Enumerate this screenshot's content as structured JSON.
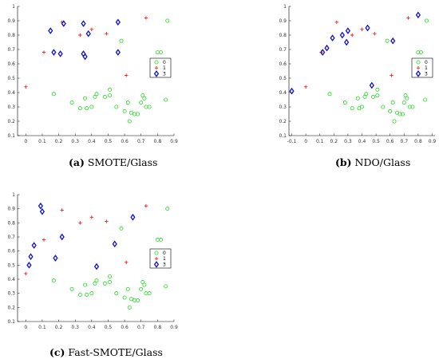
{
  "legend_labels": [
    "0",
    "1",
    "3"
  ],
  "colors": {
    "0": "#22dd22",
    "1": "#ee2020",
    "3": "#1010cc"
  },
  "chart_data": [
    {
      "type": "scatter",
      "caption_tag": "(a)",
      "caption_text": " SMOTE/Glass",
      "xlim": [
        -0.05,
        0.9
      ],
      "ylim": [
        0.1,
        1.0
      ],
      "xticks": [
        "0",
        "0.1",
        "0.2",
        "0.3",
        "0.4",
        "0.5",
        "0.6",
        "0.7",
        "0.8",
        "0.9"
      ],
      "yticks": [
        "0.1",
        "0.2",
        "0.3",
        "0.4",
        "0.5",
        "0.6",
        "0.7",
        "0.8",
        "0.9",
        "1"
      ],
      "legend_position": "center-right",
      "series": [
        {
          "name": "0",
          "marker": "circle",
          "points": [
            [
              0.17,
              0.39
            ],
            [
              0.28,
              0.33
            ],
            [
              0.33,
              0.29
            ],
            [
              0.36,
              0.36
            ],
            [
              0.37,
              0.29
            ],
            [
              0.4,
              0.3
            ],
            [
              0.42,
              0.37
            ],
            [
              0.43,
              0.39
            ],
            [
              0.48,
              0.37
            ],
            [
              0.51,
              0.42
            ],
            [
              0.51,
              0.38
            ],
            [
              0.55,
              0.3
            ],
            [
              0.58,
              0.76
            ],
            [
              0.6,
              0.27
            ],
            [
              0.62,
              0.33
            ],
            [
              0.63,
              0.2
            ],
            [
              0.64,
              0.26
            ],
            [
              0.66,
              0.25
            ],
            [
              0.68,
              0.25
            ],
            [
              0.7,
              0.33
            ],
            [
              0.71,
              0.38
            ],
            [
              0.72,
              0.36
            ],
            [
              0.73,
              0.3
            ],
            [
              0.75,
              0.3
            ],
            [
              0.8,
              0.68
            ],
            [
              0.82,
              0.68
            ],
            [
              0.85,
              0.35
            ],
            [
              0.86,
              0.9
            ]
          ]
        },
        {
          "name": "1",
          "marker": "plus",
          "points": [
            [
              0.0,
              0.44
            ],
            [
              0.11,
              0.68
            ],
            [
              0.22,
              0.89
            ],
            [
              0.33,
              0.8
            ],
            [
              0.4,
              0.84
            ],
            [
              0.49,
              0.81
            ],
            [
              0.61,
              0.52
            ],
            [
              0.73,
              0.92
            ]
          ]
        },
        {
          "name": "3",
          "marker": "diamond",
          "points": [
            [
              0.15,
              0.83
            ],
            [
              0.17,
              0.68
            ],
            [
              0.21,
              0.67
            ],
            [
              0.23,
              0.88
            ],
            [
              0.35,
              0.88
            ],
            [
              0.35,
              0.67
            ],
            [
              0.36,
              0.65
            ],
            [
              0.38,
              0.81
            ],
            [
              0.56,
              0.89
            ],
            [
              0.56,
              0.68
            ]
          ]
        }
      ]
    },
    {
      "type": "scatter",
      "caption_tag": "(b)",
      "caption_text": " NDO/Glass",
      "xlim": [
        -0.12,
        0.92
      ],
      "ylim": [
        0.1,
        1.0
      ],
      "xticks": [
        "-0.1",
        "0",
        "0.1",
        "0.2",
        "0.3",
        "0.4",
        "0.5",
        "0.6",
        "0.7",
        "0.8",
        "0.9"
      ],
      "yticks": [
        "0.1",
        "0.2",
        "0.3",
        "0.4",
        "0.5",
        "0.6",
        "0.7",
        "0.8",
        "0.9",
        "1"
      ],
      "legend_position": "center-right",
      "series": [
        {
          "name": "0",
          "marker": "circle",
          "points": [
            [
              0.17,
              0.39
            ],
            [
              0.28,
              0.33
            ],
            [
              0.33,
              0.29
            ],
            [
              0.37,
              0.36
            ],
            [
              0.38,
              0.29
            ],
            [
              0.4,
              0.3
            ],
            [
              0.42,
              0.37
            ],
            [
              0.43,
              0.39
            ],
            [
              0.48,
              0.37
            ],
            [
              0.51,
              0.42
            ],
            [
              0.51,
              0.38
            ],
            [
              0.55,
              0.3
            ],
            [
              0.58,
              0.76
            ],
            [
              0.6,
              0.27
            ],
            [
              0.62,
              0.33
            ],
            [
              0.63,
              0.2
            ],
            [
              0.65,
              0.26
            ],
            [
              0.67,
              0.25
            ],
            [
              0.69,
              0.25
            ],
            [
              0.7,
              0.33
            ],
            [
              0.71,
              0.38
            ],
            [
              0.72,
              0.36
            ],
            [
              0.74,
              0.3
            ],
            [
              0.76,
              0.3
            ],
            [
              0.8,
              0.68
            ],
            [
              0.82,
              0.68
            ],
            [
              0.85,
              0.35
            ],
            [
              0.86,
              0.9
            ]
          ]
        },
        {
          "name": "1",
          "marker": "plus",
          "points": [
            [
              0.0,
              0.44
            ],
            [
              0.11,
              0.68
            ],
            [
              0.22,
              0.89
            ],
            [
              0.33,
              0.8
            ],
            [
              0.4,
              0.84
            ],
            [
              0.49,
              0.81
            ],
            [
              0.61,
              0.52
            ],
            [
              0.73,
              0.92
            ]
          ]
        },
        {
          "name": "3",
          "marker": "diamond",
          "points": [
            [
              -0.1,
              0.41
            ],
            [
              0.12,
              0.68
            ],
            [
              0.15,
              0.71
            ],
            [
              0.19,
              0.78
            ],
            [
              0.26,
              0.8
            ],
            [
              0.29,
              0.75
            ],
            [
              0.3,
              0.83
            ],
            [
              0.44,
              0.85
            ],
            [
              0.47,
              0.45
            ],
            [
              0.62,
              0.76
            ],
            [
              0.8,
              0.94
            ]
          ]
        }
      ]
    },
    {
      "type": "scatter",
      "caption_tag": "(c)",
      "caption_text": " Fast-SMOTE/Glass",
      "xlim": [
        -0.05,
        0.9
      ],
      "ylim": [
        0.1,
        1.0
      ],
      "xticks": [
        "0",
        "0.1",
        "0.2",
        "0.3",
        "0.4",
        "0.5",
        "0.6",
        "0.7",
        "0.8",
        "0.9"
      ],
      "yticks": [
        "0.1",
        "0.2",
        "0.3",
        "0.4",
        "0.5",
        "0.6",
        "0.7",
        "0.8",
        "0.9",
        "1"
      ],
      "legend_position": "center-right",
      "series": [
        {
          "name": "0",
          "marker": "circle",
          "points": [
            [
              0.17,
              0.39
            ],
            [
              0.28,
              0.33
            ],
            [
              0.33,
              0.29
            ],
            [
              0.36,
              0.36
            ],
            [
              0.37,
              0.29
            ],
            [
              0.4,
              0.3
            ],
            [
              0.42,
              0.37
            ],
            [
              0.43,
              0.39
            ],
            [
              0.48,
              0.37
            ],
            [
              0.51,
              0.42
            ],
            [
              0.51,
              0.38
            ],
            [
              0.55,
              0.3
            ],
            [
              0.58,
              0.76
            ],
            [
              0.6,
              0.27
            ],
            [
              0.62,
              0.33
            ],
            [
              0.63,
              0.2
            ],
            [
              0.64,
              0.26
            ],
            [
              0.66,
              0.25
            ],
            [
              0.68,
              0.25
            ],
            [
              0.7,
              0.33
            ],
            [
              0.71,
              0.38
            ],
            [
              0.72,
              0.36
            ],
            [
              0.73,
              0.3
            ],
            [
              0.75,
              0.3
            ],
            [
              0.8,
              0.68
            ],
            [
              0.82,
              0.68
            ],
            [
              0.85,
              0.35
            ],
            [
              0.86,
              0.9
            ]
          ]
        },
        {
          "name": "1",
          "marker": "plus",
          "points": [
            [
              0.0,
              0.44
            ],
            [
              0.11,
              0.68
            ],
            [
              0.22,
              0.89
            ],
            [
              0.33,
              0.8
            ],
            [
              0.4,
              0.84
            ],
            [
              0.49,
              0.81
            ],
            [
              0.61,
              0.52
            ],
            [
              0.73,
              0.92
            ]
          ]
        },
        {
          "name": "3",
          "marker": "diamond",
          "points": [
            [
              0.02,
              0.5
            ],
            [
              0.03,
              0.56
            ],
            [
              0.05,
              0.64
            ],
            [
              0.09,
              0.92
            ],
            [
              0.1,
              0.88
            ],
            [
              0.18,
              0.55
            ],
            [
              0.22,
              0.7
            ],
            [
              0.43,
              0.49
            ],
            [
              0.54,
              0.65
            ],
            [
              0.65,
              0.84
            ]
          ]
        }
      ]
    }
  ]
}
